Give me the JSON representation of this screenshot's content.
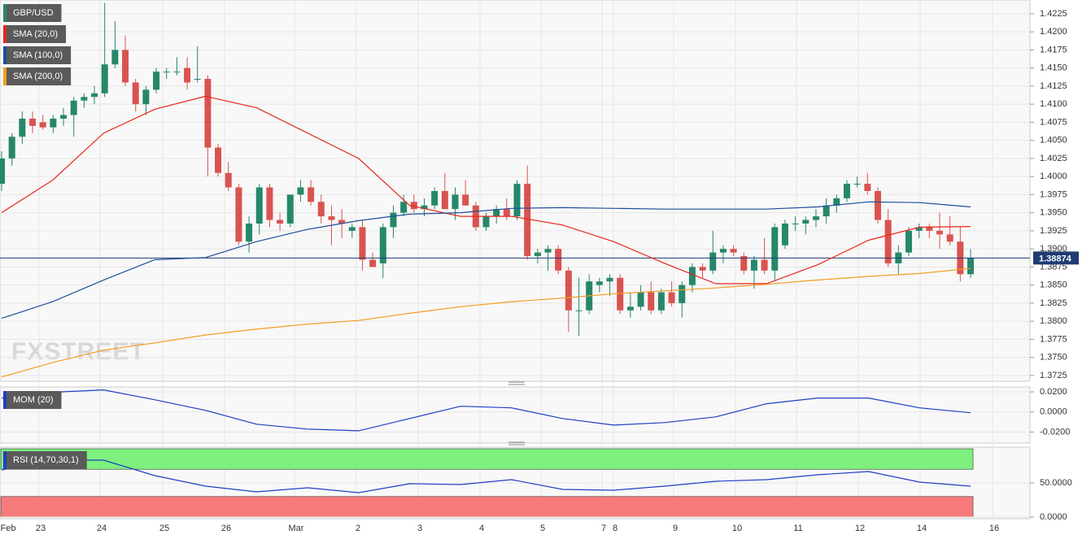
{
  "chart_data": [
    {
      "type": "candlestick",
      "title": "GBP/USD",
      "up_color": "#26876a",
      "down_color": "#d9534f",
      "last_price": 1.38874,
      "watermark": "FXSTREET",
      "candles": [
        [
          1.399,
          1.4035,
          1.398,
          1.4025
        ],
        [
          1.4025,
          1.406,
          1.4015,
          1.4055
        ],
        [
          1.4055,
          1.409,
          1.4045,
          1.408
        ],
        [
          1.408,
          1.409,
          1.406,
          1.407
        ],
        [
          1.4075,
          1.4085,
          1.4065,
          1.4068
        ],
        [
          1.4068,
          1.4085,
          1.406,
          1.408
        ],
        [
          1.408,
          1.4095,
          1.407,
          1.4085
        ],
        [
          1.4085,
          1.411,
          1.4055,
          1.4105
        ],
        [
          1.4105,
          1.4115,
          1.4095,
          1.411
        ],
        [
          1.411,
          1.4125,
          1.41,
          1.4115
        ],
        [
          1.4115,
          1.424,
          1.411,
          1.4155
        ],
        [
          1.4155,
          1.4215,
          1.415,
          1.4175
        ],
        [
          1.4175,
          1.4195,
          1.4125,
          1.413
        ],
        [
          1.413,
          1.4135,
          1.409,
          1.41
        ],
        [
          1.41,
          1.4125,
          1.4085,
          1.412
        ],
        [
          1.412,
          1.415,
          1.4115,
          1.4145
        ],
        [
          1.4145,
          1.415,
          1.4135,
          1.4145
        ],
        [
          1.4145,
          1.4165,
          1.414,
          1.4145
        ],
        [
          1.415,
          1.4165,
          1.412,
          1.413
        ],
        [
          1.4135,
          1.418,
          1.413,
          1.4135
        ],
        [
          1.4135,
          1.414,
          1.4,
          1.404
        ],
        [
          1.404,
          1.4045,
          1.4,
          1.4005
        ],
        [
          1.4005,
          1.402,
          1.398,
          1.3985
        ],
        [
          1.3985,
          1.399,
          1.3905,
          1.391
        ],
        [
          1.391,
          1.3945,
          1.3895,
          1.3935
        ],
        [
          1.3935,
          1.399,
          1.392,
          1.3985
        ],
        [
          1.3985,
          1.399,
          1.393,
          1.394
        ],
        [
          1.394,
          1.395,
          1.3925,
          1.3935
        ],
        [
          1.3935,
          1.3975,
          1.393,
          1.3975
        ],
        [
          1.3975,
          1.3995,
          1.3965,
          1.3985
        ],
        [
          1.3985,
          1.3995,
          1.396,
          1.3965
        ],
        [
          1.3965,
          1.3975,
          1.3935,
          1.3945
        ],
        [
          1.3945,
          1.396,
          1.3905,
          1.394
        ],
        [
          1.394,
          1.3955,
          1.3915,
          1.3935
        ],
        [
          1.3925,
          1.3935,
          1.3915,
          1.393
        ],
        [
          1.393,
          1.394,
          1.387,
          1.3885
        ],
        [
          1.3885,
          1.3895,
          1.3875,
          1.3875
        ],
        [
          1.388,
          1.3935,
          1.386,
          1.393
        ],
        [
          1.393,
          1.396,
          1.3915,
          1.395
        ],
        [
          1.395,
          1.3975,
          1.3945,
          1.3965
        ],
        [
          1.3965,
          1.3975,
          1.395,
          1.3955
        ],
        [
          1.3955,
          1.397,
          1.3945,
          1.396
        ],
        [
          1.396,
          1.3985,
          1.3955,
          1.398
        ],
        [
          1.398,
          1.4005,
          1.3955,
          1.3955
        ],
        [
          1.3955,
          1.3985,
          1.394,
          1.3975
        ],
        [
          1.3975,
          1.3995,
          1.396,
          1.396
        ],
        [
          1.396,
          1.3965,
          1.3925,
          1.393
        ],
        [
          1.393,
          1.395,
          1.3925,
          1.3945
        ],
        [
          1.3945,
          1.396,
          1.3935,
          1.3955
        ],
        [
          1.3955,
          1.397,
          1.394,
          1.3945
        ],
        [
          1.3945,
          1.3995,
          1.394,
          1.399
        ],
        [
          1.399,
          1.4015,
          1.3885,
          1.389
        ],
        [
          1.389,
          1.39,
          1.388,
          1.3895
        ],
        [
          1.3895,
          1.3905,
          1.387,
          1.39
        ],
        [
          1.39,
          1.3905,
          1.3865,
          1.387
        ],
        [
          1.387,
          1.3875,
          1.3785,
          1.3815
        ],
        [
          1.3815,
          1.386,
          1.378,
          1.3815
        ],
        [
          1.3815,
          1.3865,
          1.381,
          1.3855
        ],
        [
          1.385,
          1.386,
          1.384,
          1.3855
        ],
        [
          1.3855,
          1.3865,
          1.3835,
          1.386
        ],
        [
          1.386,
          1.3865,
          1.381,
          1.3815
        ],
        [
          1.3815,
          1.384,
          1.3805,
          1.382
        ],
        [
          1.382,
          1.385,
          1.3815,
          1.384
        ],
        [
          1.384,
          1.3855,
          1.381,
          1.3815
        ],
        [
          1.3815,
          1.3845,
          1.381,
          1.384
        ],
        [
          1.384,
          1.3855,
          1.382,
          1.3825
        ],
        [
          1.3825,
          1.3855,
          1.3805,
          1.385
        ],
        [
          1.385,
          1.388,
          1.384,
          1.3875
        ],
        [
          1.3875,
          1.388,
          1.386,
          1.387
        ],
        [
          1.387,
          1.3925,
          1.3865,
          1.3895
        ],
        [
          1.3895,
          1.3905,
          1.388,
          1.39
        ],
        [
          1.39,
          1.3905,
          1.389,
          1.3895
        ],
        [
          1.389,
          1.3895,
          1.3865,
          1.387
        ],
        [
          1.387,
          1.389,
          1.3845,
          1.3885
        ],
        [
          1.3885,
          1.3915,
          1.3865,
          1.387
        ],
        [
          1.387,
          1.3935,
          1.3855,
          1.393
        ],
        [
          1.3905,
          1.394,
          1.39,
          1.3935
        ],
        [
          1.3935,
          1.3945,
          1.3925,
          1.3935
        ],
        [
          1.3935,
          1.3945,
          1.392,
          1.394
        ],
        [
          1.394,
          1.3955,
          1.393,
          1.3945
        ],
        [
          1.3945,
          1.397,
          1.3935,
          1.396
        ],
        [
          1.396,
          1.3975,
          1.395,
          1.397
        ],
        [
          1.397,
          1.3995,
          1.3965,
          1.399
        ],
        [
          1.399,
          1.4,
          1.3985,
          1.399
        ],
        [
          1.399,
          1.4005,
          1.3975,
          1.398
        ],
        [
          1.398,
          1.3985,
          1.3935,
          1.394
        ],
        [
          1.394,
          1.3955,
          1.3875,
          1.388
        ],
        [
          1.388,
          1.3905,
          1.3865,
          1.3895
        ],
        [
          1.3895,
          1.393,
          1.389,
          1.3925
        ],
        [
          1.3925,
          1.3935,
          1.3915,
          1.393
        ],
        [
          1.393,
          1.3935,
          1.3915,
          1.3925
        ],
        [
          1.3925,
          1.395,
          1.39,
          1.392
        ],
        [
          1.392,
          1.3945,
          1.3905,
          1.391
        ],
        [
          1.391,
          1.393,
          1.3855,
          1.3865
        ],
        [
          1.3865,
          1.39,
          1.386,
          1.38874
        ]
      ],
      "series": [
        {
          "name": "SMA (20,0)",
          "color": "#e8261c",
          "values": [
            1.395,
            1.3995,
            1.406,
            1.4093,
            1.4111,
            1.4095,
            1.406,
            1.4025,
            1.396,
            1.3945,
            1.3945,
            1.3933,
            1.391,
            1.388,
            1.3852,
            1.3852,
            1.3878,
            1.3912,
            1.393,
            1.3931
          ]
        },
        {
          "name": "SMA (100,0)",
          "color": "#1f4e9c",
          "values": [
            1.3804,
            1.3827,
            1.3857,
            1.3885,
            1.3888,
            1.391,
            1.3927,
            1.3939,
            1.3948,
            1.395,
            1.3956,
            1.3957,
            1.3956,
            1.3955,
            1.3955,
            1.3955,
            1.3958,
            1.3965,
            1.3964,
            1.3958
          ]
        },
        {
          "name": "SMA (200,0)",
          "color": "#f39c1f",
          "values": [
            1.3723,
            1.3743,
            1.376,
            1.377,
            1.3781,
            1.3789,
            1.3796,
            1.3801,
            1.3811,
            1.382,
            1.3827,
            1.3832,
            1.3838,
            1.3842,
            1.3846,
            1.3851,
            1.3857,
            1.3862,
            1.3866,
            1.3873
          ]
        }
      ],
      "ylim": [
        1.3717,
        1.4244
      ],
      "yticks": [
        {
          "value": 1.3725,
          "label": "1.3725"
        },
        {
          "value": 1.375,
          "label": "1.3750"
        },
        {
          "value": 1.3775,
          "label": "1.3775"
        },
        {
          "value": 1.38,
          "label": "1.3800"
        },
        {
          "value": 1.3825,
          "label": "1.3825"
        },
        {
          "value": 1.385,
          "label": "1.3850"
        },
        {
          "value": 1.3875,
          "label": "1.3875"
        },
        {
          "value": 1.39,
          "label": "1.3900"
        },
        {
          "value": 1.3925,
          "label": "1.3925"
        },
        {
          "value": 1.395,
          "label": "1.3950"
        },
        {
          "value": 1.3975,
          "label": "1.3975"
        },
        {
          "value": 1.4,
          "label": "1.4000"
        },
        {
          "value": 1.4025,
          "label": "1.4025"
        },
        {
          "value": 1.405,
          "label": "1.4050"
        },
        {
          "value": 1.4075,
          "label": "1.4075"
        },
        {
          "value": 1.41,
          "label": "1.4100"
        },
        {
          "value": 1.4125,
          "label": "1.4125"
        },
        {
          "value": 1.415,
          "label": "1.4150"
        },
        {
          "value": 1.4175,
          "label": "1.4175"
        },
        {
          "value": 1.42,
          "label": "1.4200"
        },
        {
          "value": 1.4225,
          "label": "1.4225"
        }
      ],
      "x_labels": [
        "Feb",
        "23",
        "24",
        "25",
        "26",
        "Mar",
        "2",
        "3",
        "4",
        "5",
        "7",
        "8",
        "9",
        "10",
        "11",
        "12",
        "14",
        "16"
      ],
      "grid": true
    },
    {
      "type": "line",
      "series": [
        {
          "name": "MOM (20)",
          "color": "#1f3fc4",
          "values": [
            0.0139,
            0.0196,
            0.022,
            0.0122,
            0.0016,
            -0.0122,
            -0.0171,
            -0.0188,
            -0.0065,
            0.0057,
            0.0041,
            -0.0065,
            -0.0131,
            -0.0106,
            -0.0049,
            0.0082,
            0.0139,
            0.0139,
            0.0041,
            -0.0008
          ]
        }
      ],
      "ylim": [
        -0.031,
        0.0249
      ],
      "yticks": [
        {
          "value": 0.02,
          "label": "0.0200"
        },
        {
          "value": 0,
          "label": "0.0000"
        },
        {
          "value": -0.02,
          "label": "-0.0200"
        }
      ]
    },
    {
      "type": "line",
      "series": [
        {
          "name": "RSI (14,70,30,1)",
          "color": "#1f3fc4",
          "values": [
            69.0,
            83.3,
            83.3,
            60.7,
            45.2,
            36.9,
            42.9,
            35.7,
            48.8,
            47.6,
            54.8,
            40.5,
            39.3,
            45.2,
            52.4,
            54.8,
            61.9,
            66.7,
            51.2,
            45.2
          ]
        }
      ],
      "zones": [
        {
          "from": 70,
          "to": 100,
          "color": "#7df07d"
        },
        {
          "from": 0,
          "to": 30,
          "color": "#f77b7b"
        }
      ],
      "ylim": [
        -2.4,
        102.4
      ],
      "yticks": [
        {
          "value": 50,
          "label": "50.0000"
        },
        {
          "value": 0,
          "label": "0.0000"
        }
      ]
    }
  ]
}
